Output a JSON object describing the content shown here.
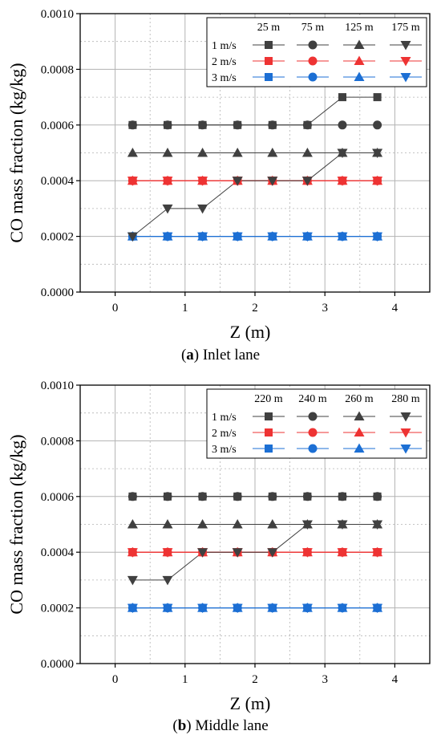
{
  "colors": {
    "dark": "#404040",
    "red": "#ee3333",
    "blue": "#1c6fd4",
    "grid": "#b3b3b3"
  },
  "marker_shapes": [
    "square",
    "circle",
    "triangle-up",
    "triangle-down"
  ],
  "speed_labels": [
    "1 m/s",
    "2 m/s",
    "3 m/s"
  ],
  "panels": [
    {
      "caption_letter": "a",
      "caption_text": "Inlet lane",
      "legend_columns": [
        "25 m",
        "75 m",
        "125 m",
        "175 m"
      ]
    },
    {
      "caption_letter": "b",
      "caption_text": "Middle lane",
      "legend_columns": [
        "220 m",
        "240 m",
        "260 m",
        "280 m"
      ]
    }
  ],
  "chart_data": [
    {
      "type": "line",
      "xlabel": "Z (m)",
      "ylabel": "CO mass fraction (kg/kg)",
      "xlim": [
        -0.5,
        4.5
      ],
      "ylim": [
        0,
        0.001
      ],
      "xticks": [
        0,
        1,
        2,
        3,
        4
      ],
      "xtick_labels": [
        "0",
        "1",
        "2",
        "3",
        "4"
      ],
      "yticks": [
        0,
        0.0002,
        0.0004,
        0.0006,
        0.0008,
        0.001
      ],
      "ytick_labels": [
        "0.0000",
        "0.0002",
        "0.0004",
        "0.0006",
        "0.0008",
        "0.0010"
      ],
      "grid": true,
      "legend_position": "top-right",
      "x": [
        0.25,
        0.75,
        1.25,
        1.75,
        2.25,
        2.75,
        3.25,
        3.75
      ],
      "series": [
        {
          "name": "1 m/s, 25 m",
          "speed": "1 m/s",
          "location": "25 m",
          "values": [
            0.0006,
            0.0006,
            0.0006,
            0.0006,
            0.0006,
            0.0006,
            0.0007,
            0.0007
          ]
        },
        {
          "name": "1 m/s, 75 m",
          "speed": "1 m/s",
          "location": "75 m",
          "values": [
            0.0006,
            0.0006,
            0.0006,
            0.0006,
            0.0006,
            0.0006,
            0.0006,
            0.0006
          ]
        },
        {
          "name": "1 m/s, 125 m",
          "speed": "1 m/s",
          "location": "125 m",
          "values": [
            0.0005,
            0.0005,
            0.0005,
            0.0005,
            0.0005,
            0.0005,
            0.0005,
            0.0005
          ]
        },
        {
          "name": "1 m/s, 175 m",
          "speed": "1 m/s",
          "location": "175 m",
          "values": [
            0.0002,
            0.0003,
            0.0003,
            0.0004,
            0.0004,
            0.0004,
            0.0005,
            0.0005
          ]
        },
        {
          "name": "2 m/s, 25 m",
          "speed": "2 m/s",
          "location": "25 m",
          "values": [
            0.0004,
            0.0004,
            0.0004,
            0.0004,
            0.0004,
            0.0004,
            0.0004,
            0.0004
          ]
        },
        {
          "name": "2 m/s, 75 m",
          "speed": "2 m/s",
          "location": "75 m",
          "values": [
            0.0004,
            0.0004,
            0.0004,
            0.0004,
            0.0004,
            0.0004,
            0.0004,
            0.0004
          ]
        },
        {
          "name": "2 m/s, 125 m",
          "speed": "2 m/s",
          "location": "125 m",
          "values": [
            0.0004,
            0.0004,
            0.0004,
            0.0004,
            0.0004,
            0.0004,
            0.0004,
            0.0004
          ]
        },
        {
          "name": "2 m/s, 175 m",
          "speed": "2 m/s",
          "location": "175 m",
          "values": [
            0.0004,
            0.0004,
            0.0004,
            0.0004,
            0.0004,
            0.0004,
            0.0004,
            0.0004
          ]
        },
        {
          "name": "3 m/s, 25 m",
          "speed": "3 m/s",
          "location": "25 m",
          "values": [
            0.0002,
            0.0002,
            0.0002,
            0.0002,
            0.0002,
            0.0002,
            0.0002,
            0.0002
          ]
        },
        {
          "name": "3 m/s, 75 m",
          "speed": "3 m/s",
          "location": "75 m",
          "values": [
            0.0002,
            0.0002,
            0.0002,
            0.0002,
            0.0002,
            0.0002,
            0.0002,
            0.0002
          ]
        },
        {
          "name": "3 m/s, 125 m",
          "speed": "3 m/s",
          "location": "125 m",
          "values": [
            0.0002,
            0.0002,
            0.0002,
            0.0002,
            0.0002,
            0.0002,
            0.0002,
            0.0002
          ]
        },
        {
          "name": "3 m/s, 175 m",
          "speed": "3 m/s",
          "location": "175 m",
          "values": [
            0.0002,
            0.0002,
            0.0002,
            0.0002,
            0.0002,
            0.0002,
            0.0002,
            0.0002
          ]
        }
      ]
    },
    {
      "type": "line",
      "xlabel": "Z (m)",
      "ylabel": "CO mass fraction (kg/kg)",
      "xlim": [
        -0.5,
        4.5
      ],
      "ylim": [
        0,
        0.001
      ],
      "xticks": [
        0,
        1,
        2,
        3,
        4
      ],
      "xtick_labels": [
        "0",
        "1",
        "2",
        "3",
        "4"
      ],
      "yticks": [
        0,
        0.0002,
        0.0004,
        0.0006,
        0.0008,
        0.001
      ],
      "ytick_labels": [
        "0.0000",
        "0.0002",
        "0.0004",
        "0.0006",
        "0.0008",
        "0.0010"
      ],
      "grid": true,
      "legend_position": "top-right",
      "x": [
        0.25,
        0.75,
        1.25,
        1.75,
        2.25,
        2.75,
        3.25,
        3.75
      ],
      "series": [
        {
          "name": "1 m/s, 220 m",
          "speed": "1 m/s",
          "location": "220 m",
          "values": [
            0.0006,
            0.0006,
            0.0006,
            0.0006,
            0.0006,
            0.0006,
            0.0006,
            0.0006
          ]
        },
        {
          "name": "1 m/s, 240 m",
          "speed": "1 m/s",
          "location": "240 m",
          "values": [
            0.0006,
            0.0006,
            0.0006,
            0.0006,
            0.0006,
            0.0006,
            0.0006,
            0.0006
          ]
        },
        {
          "name": "1 m/s, 260 m",
          "speed": "1 m/s",
          "location": "260 m",
          "values": [
            0.0005,
            0.0005,
            0.0005,
            0.0005,
            0.0005,
            0.0005,
            0.0005,
            0.0005
          ]
        },
        {
          "name": "1 m/s, 280 m",
          "speed": "1 m/s",
          "location": "280 m",
          "values": [
            0.0003,
            0.0003,
            0.0004,
            0.0004,
            0.0004,
            0.0005,
            0.0005,
            0.0005
          ]
        },
        {
          "name": "2 m/s, 220 m",
          "speed": "2 m/s",
          "location": "220 m",
          "values": [
            0.0004,
            0.0004,
            0.0004,
            0.0004,
            0.0004,
            0.0004,
            0.0004,
            0.0004
          ]
        },
        {
          "name": "2 m/s, 240 m",
          "speed": "2 m/s",
          "location": "240 m",
          "values": [
            0.0004,
            0.0004,
            0.0004,
            0.0004,
            0.0004,
            0.0004,
            0.0004,
            0.0004
          ]
        },
        {
          "name": "2 m/s, 260 m",
          "speed": "2 m/s",
          "location": "260 m",
          "values": [
            0.0004,
            0.0004,
            0.0004,
            0.0004,
            0.0004,
            0.0004,
            0.0004,
            0.0004
          ]
        },
        {
          "name": "2 m/s, 280 m",
          "speed": "2 m/s",
          "location": "280 m",
          "values": [
            0.0004,
            0.0004,
            0.0004,
            0.0004,
            0.0004,
            0.0004,
            0.0004,
            0.0004
          ]
        },
        {
          "name": "3 m/s, 220 m",
          "speed": "3 m/s",
          "location": "220 m",
          "values": [
            0.0002,
            0.0002,
            0.0002,
            0.0002,
            0.0002,
            0.0002,
            0.0002,
            0.0002
          ]
        },
        {
          "name": "3 m/s, 240 m",
          "speed": "3 m/s",
          "location": "240 m",
          "values": [
            0.0002,
            0.0002,
            0.0002,
            0.0002,
            0.0002,
            0.0002,
            0.0002,
            0.0002
          ]
        },
        {
          "name": "3 m/s, 260 m",
          "speed": "3 m/s",
          "location": "260 m",
          "values": [
            0.0002,
            0.0002,
            0.0002,
            0.0002,
            0.0002,
            0.0002,
            0.0002,
            0.0002
          ]
        },
        {
          "name": "3 m/s, 280 m",
          "speed": "3 m/s",
          "location": "280 m",
          "values": [
            0.0002,
            0.0002,
            0.0002,
            0.0002,
            0.0002,
            0.0002,
            0.0002,
            0.0002
          ]
        }
      ]
    }
  ]
}
